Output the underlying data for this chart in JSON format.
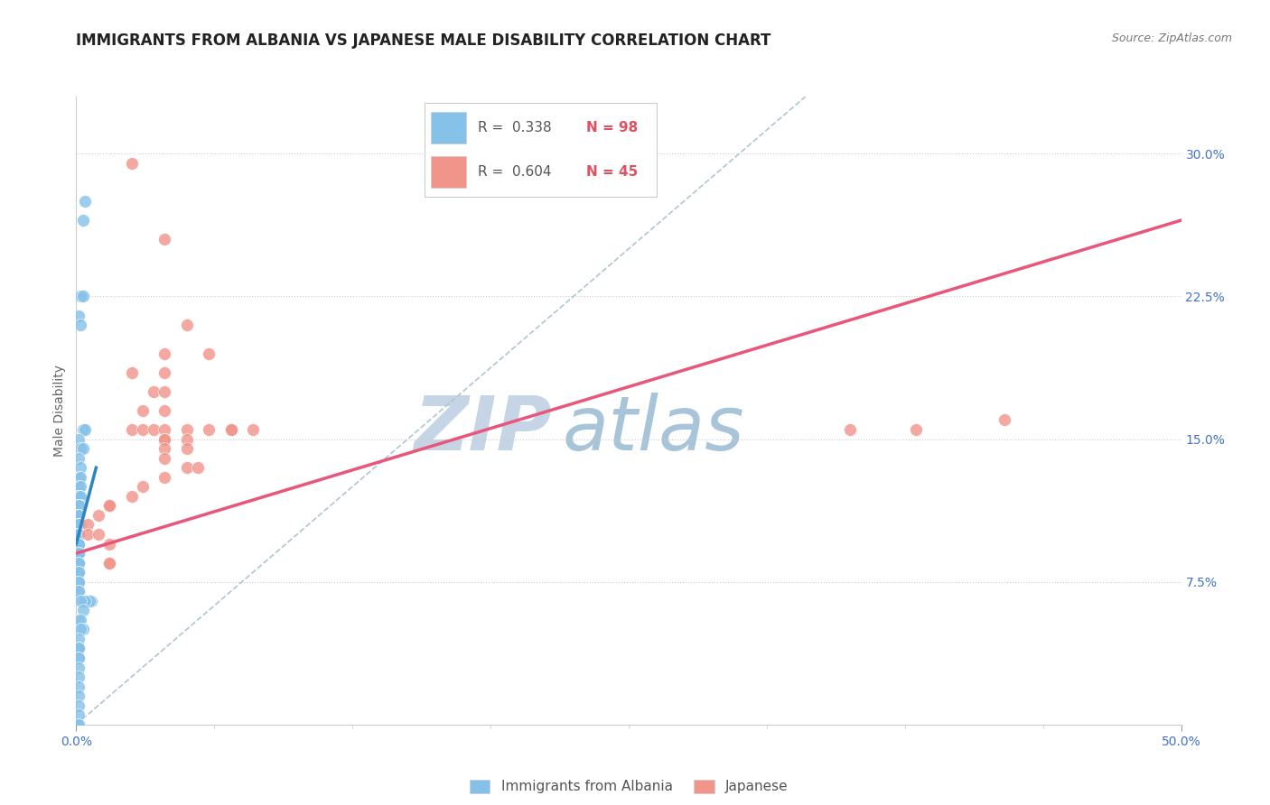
{
  "title": "IMMIGRANTS FROM ALBANIA VS JAPANESE MALE DISABILITY CORRELATION CHART",
  "source": "Source: ZipAtlas.com",
  "ylabel": "Male Disability",
  "ytick_labels": [
    "7.5%",
    "15.0%",
    "22.5%",
    "30.0%"
  ],
  "ytick_values": [
    0.075,
    0.15,
    0.225,
    0.3
  ],
  "xlim": [
    0.0,
    0.5
  ],
  "ylim": [
    0.0,
    0.33
  ],
  "legend_r1": "R = 0.338",
  "legend_n1": "N = 98",
  "legend_r2": "R = 0.604",
  "legend_n2": "N = 45",
  "blue_color": "#85C1E9",
  "pink_color": "#F1948A",
  "blue_line_color": "#2E86C1",
  "pink_line_color": "#E8567A",
  "dashed_line_color": "#AEC6CF",
  "watermark_zip_color": "#C8D8E8",
  "watermark_atlas_color": "#A8C4D8",
  "title_fontsize": 12,
  "axis_label_fontsize": 10,
  "tick_fontsize": 10,
  "blue_scatter_x": [
    0.003,
    0.004,
    0.002,
    0.003,
    0.001,
    0.002,
    0.003,
    0.004,
    0.001,
    0.002,
    0.003,
    0.001,
    0.002,
    0.001,
    0.002,
    0.001,
    0.002,
    0.001,
    0.002,
    0.001,
    0.001,
    0.002,
    0.001,
    0.002,
    0.001,
    0.001,
    0.001,
    0.002,
    0.001,
    0.001,
    0.001,
    0.001,
    0.001,
    0.001,
    0.001,
    0.001,
    0.001,
    0.001,
    0.002,
    0.001,
    0.001,
    0.001,
    0.001,
    0.001,
    0.001,
    0.001,
    0.001,
    0.001,
    0.001,
    0.001,
    0.001,
    0.001,
    0.001,
    0.001,
    0.001,
    0.001,
    0.001,
    0.001,
    0.001,
    0.001,
    0.001,
    0.001,
    0.001,
    0.001,
    0.001,
    0.001,
    0.001,
    0.001,
    0.001,
    0.001,
    0.001,
    0.001,
    0.001,
    0.001,
    0.003,
    0.007,
    0.006,
    0.004,
    0.002,
    0.003,
    0.001,
    0.002,
    0.003,
    0.002,
    0.001,
    0.001,
    0.001,
    0.001,
    0.001,
    0.001,
    0.001,
    0.001,
    0.001,
    0.001,
    0.001,
    0.001,
    0.001,
    0.001
  ],
  "blue_scatter_y": [
    0.265,
    0.275,
    0.225,
    0.225,
    0.215,
    0.21,
    0.155,
    0.155,
    0.15,
    0.145,
    0.145,
    0.14,
    0.135,
    0.13,
    0.13,
    0.125,
    0.125,
    0.12,
    0.12,
    0.12,
    0.12,
    0.12,
    0.115,
    0.115,
    0.115,
    0.115,
    0.115,
    0.115,
    0.115,
    0.11,
    0.11,
    0.11,
    0.11,
    0.11,
    0.11,
    0.11,
    0.11,
    0.11,
    0.105,
    0.105,
    0.105,
    0.105,
    0.105,
    0.105,
    0.105,
    0.105,
    0.105,
    0.1,
    0.1,
    0.1,
    0.1,
    0.1,
    0.1,
    0.1,
    0.1,
    0.1,
    0.1,
    0.095,
    0.095,
    0.095,
    0.095,
    0.09,
    0.09,
    0.09,
    0.085,
    0.085,
    0.085,
    0.08,
    0.08,
    0.08,
    0.075,
    0.075,
    0.07,
    0.07,
    0.065,
    0.065,
    0.065,
    0.065,
    0.065,
    0.06,
    0.055,
    0.055,
    0.05,
    0.05,
    0.045,
    0.04,
    0.04,
    0.04,
    0.035,
    0.035,
    0.03,
    0.025,
    0.02,
    0.015,
    0.01,
    0.005,
    0.0,
    0.0
  ],
  "pink_scatter_x": [
    0.025,
    0.04,
    0.05,
    0.04,
    0.06,
    0.025,
    0.04,
    0.035,
    0.04,
    0.04,
    0.03,
    0.025,
    0.03,
    0.035,
    0.04,
    0.04,
    0.05,
    0.06,
    0.07,
    0.07,
    0.08,
    0.05,
    0.04,
    0.04,
    0.05,
    0.04,
    0.05,
    0.055,
    0.04,
    0.03,
    0.025,
    0.015,
    0.015,
    0.015,
    0.015,
    0.01,
    0.005,
    0.005,
    0.01,
    0.015,
    0.015,
    0.015,
    0.35,
    0.38,
    0.42
  ],
  "pink_scatter_y": [
    0.295,
    0.255,
    0.21,
    0.195,
    0.195,
    0.185,
    0.185,
    0.175,
    0.175,
    0.165,
    0.165,
    0.155,
    0.155,
    0.155,
    0.155,
    0.15,
    0.155,
    0.155,
    0.155,
    0.155,
    0.155,
    0.15,
    0.15,
    0.145,
    0.145,
    0.14,
    0.135,
    0.135,
    0.13,
    0.125,
    0.12,
    0.115,
    0.115,
    0.115,
    0.115,
    0.11,
    0.105,
    0.1,
    0.1,
    0.095,
    0.085,
    0.085,
    0.155,
    0.155,
    0.16
  ],
  "blue_trendline_x": [
    0.0,
    0.009
  ],
  "blue_trendline_y": [
    0.095,
    0.135
  ],
  "pink_trendline_x": [
    0.0,
    0.5
  ],
  "pink_trendline_y": [
    0.09,
    0.265
  ],
  "dashed_line_x": [
    0.0,
    0.33
  ],
  "dashed_line_y": [
    0.0,
    0.33
  ]
}
